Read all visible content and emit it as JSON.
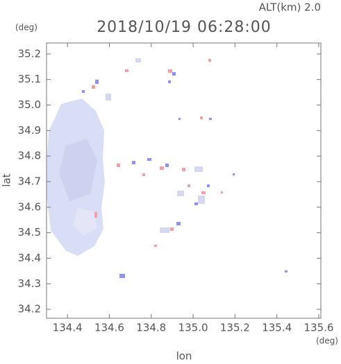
{
  "chart_data": {
    "type": "map",
    "title": "2018/10/19 06:28:00",
    "subtitle": "ALT(km) 2.0",
    "x_label": "lon",
    "x_unit": "(deg)",
    "y_label": "lat",
    "y_unit": "(deg)",
    "xlim": [
      134.3,
      135.61
    ],
    "ylim": [
      34.165,
      35.243
    ],
    "xticks": [
      134.4,
      134.6,
      134.8,
      {
        "value": 135,
        "label": "135.0"
      },
      135.2,
      135.4,
      135.6
    ],
    "yticks": [
      34.2,
      34.3,
      34.4,
      34.5,
      34.6,
      34.7,
      34.8,
      34.9,
      {
        "value": 35,
        "label": "35.0"
      },
      35.1,
      35.2
    ]
  }
}
